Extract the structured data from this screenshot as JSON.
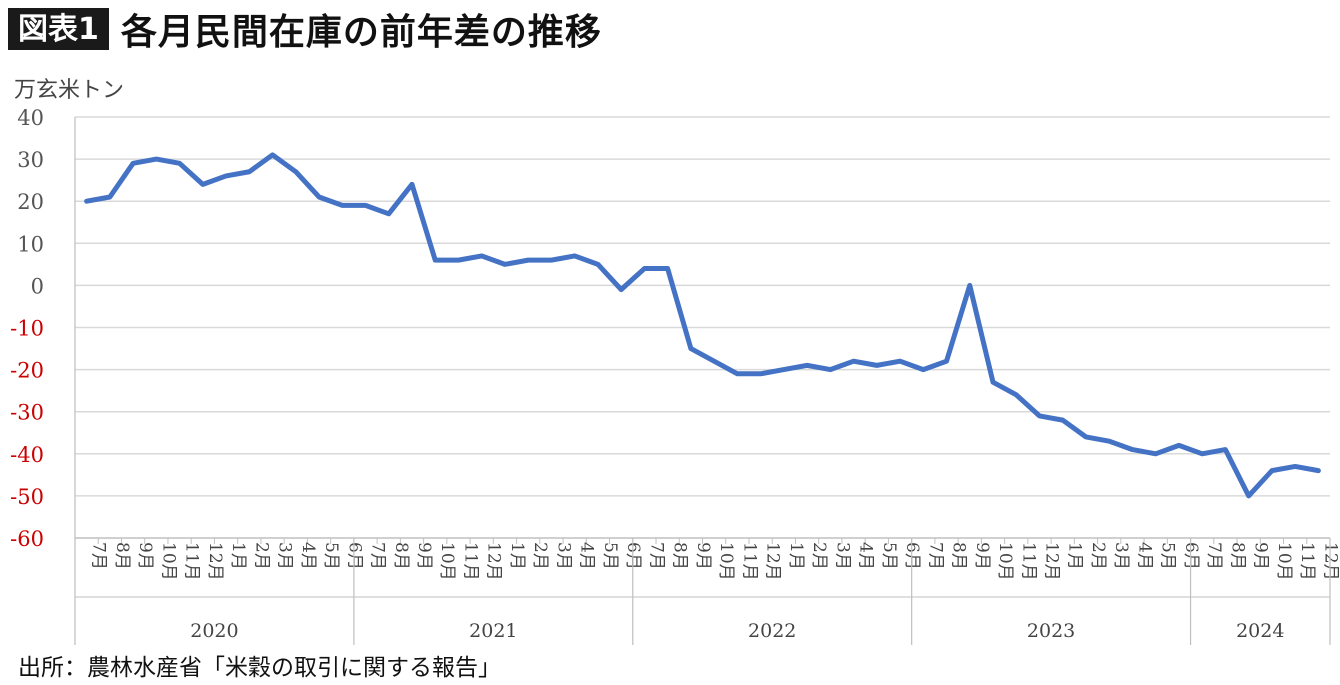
{
  "header": {
    "tag": "図表1",
    "title": "各月民間在庫の前年差の推移"
  },
  "unit_label": "万玄米トン",
  "source": "出所：農林水産省「米穀の取引に関する報告」",
  "colors": {
    "line": "#4472c4",
    "negative_tick": "#cc0000",
    "positive_tick": "#555555",
    "grid": "#d9d9d9"
  },
  "chart_data": {
    "type": "line",
    "title": "各月民間在庫の前年差の推移",
    "ylabel": "万玄米トン",
    "ylim": [
      -60,
      40
    ],
    "yticks": [
      40,
      30,
      20,
      10,
      0,
      -10,
      -20,
      -30,
      -40,
      -50,
      -60
    ],
    "grid": true,
    "x": [
      "7月",
      "8月",
      "9月",
      "10月",
      "11月",
      "12月",
      "1月",
      "2月",
      "3月",
      "4月",
      "5月",
      "6月",
      "7月",
      "8月",
      "9月",
      "10月",
      "11月",
      "12月",
      "1月",
      "2月",
      "3月",
      "4月",
      "5月",
      "6月",
      "7月",
      "8月",
      "9月",
      "10月",
      "11月",
      "12月",
      "1月",
      "2月",
      "3月",
      "4月",
      "5月",
      "6月",
      "7月",
      "8月",
      "9月",
      "10月",
      "11月",
      "12月",
      "1月",
      "2月",
      "3月",
      "4月",
      "5月",
      "6月",
      "7月",
      "8月",
      "9月",
      "10月",
      "11月",
      "12月"
    ],
    "groups": [
      {
        "label": "2020",
        "count": 12
      },
      {
        "label": "2021",
        "count": 12
      },
      {
        "label": "2022",
        "count": 12
      },
      {
        "label": "2023",
        "count": 12
      },
      {
        "label": "2024",
        "count": 6
      }
    ],
    "values": [
      20,
      21,
      29,
      30,
      29,
      24,
      26,
      27,
      31,
      27,
      21,
      19,
      19,
      17,
      24,
      6,
      6,
      7,
      5,
      6,
      6,
      7,
      5,
      -1,
      4,
      4,
      -15,
      -18,
      -21,
      -21,
      -20,
      -19,
      -20,
      -18,
      -19,
      -18,
      -20,
      -18,
      0,
      -23,
      -26,
      -31,
      -32,
      -36,
      -37,
      -39,
      -40,
      -38,
      -40,
      -39,
      -50,
      -44,
      -43,
      -44
    ]
  }
}
